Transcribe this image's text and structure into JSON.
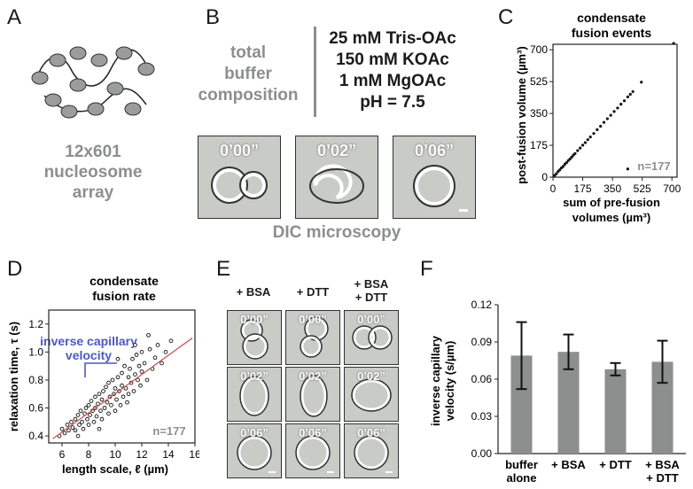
{
  "panels": {
    "A": {
      "letter": "A",
      "label_lines": [
        "12x601",
        "nucleosome",
        "array"
      ]
    },
    "B": {
      "letter": "B",
      "left_label_lines": [
        "total",
        "buffer",
        "composition"
      ],
      "buffer_lines": [
        "25 mM Tris-OAc",
        "150 mM KOAc",
        "1 mM MgOAc",
        "pH = 7.5"
      ],
      "timestamps": [
        "0’00”",
        "0’02”",
        "0’06”"
      ],
      "caption": "DIC microscopy"
    },
    "C": {
      "letter": "C",
      "title_lines": [
        "condensate",
        "fusion events"
      ],
      "ylabel": "post-fusion volume (µm³)",
      "xlabel_lines": [
        "sum of pre-fusion",
        "volumes (µm³)"
      ],
      "n_label": "n=177"
    },
    "D": {
      "letter": "D",
      "title_lines": [
        "condensate",
        "fusion rate"
      ],
      "annotation_lines": [
        "inverse capillary",
        "velocity"
      ],
      "ylabel": "relaxation time, τ (s)",
      "xlabel": "length scale, ℓ (µm)",
      "n_label": "n=177"
    },
    "E": {
      "letter": "E",
      "column_headers": [
        "+ BSA",
        "+ DTT",
        "+ BSA\n+ DTT"
      ],
      "column_header_lines": [
        [
          "+ BSA"
        ],
        [
          "+ DTT"
        ],
        [
          "+ BSA",
          "+ DTT"
        ]
      ],
      "timestamps": [
        "0’00”",
        "0’02”",
        "0’06”"
      ]
    },
    "F": {
      "letter": "F",
      "ylabel_lines": [
        "inverse capillary",
        "velocity (s/µm)"
      ],
      "category_lines": [
        [
          "buffer",
          "alone"
        ],
        [
          "+ BSA"
        ],
        [
          "+ DTT"
        ],
        [
          "+ BSA",
          "+ DTT"
        ]
      ]
    }
  },
  "chart_data": [
    {
      "panel": "C",
      "type": "scatter",
      "title": "condensate fusion events",
      "xlabel": "sum of pre-fusion volumes (µm³)",
      "ylabel": "post-fusion volume (µm³)",
      "xlim": [
        0,
        730
      ],
      "ylim": [
        0,
        730
      ],
      "xticks": [
        0,
        175,
        350,
        525,
        700
      ],
      "yticks": [
        0,
        175,
        350,
        525,
        700
      ],
      "points": [
        [
          10,
          10
        ],
        [
          20,
          19
        ],
        [
          30,
          31
        ],
        [
          40,
          40
        ],
        [
          50,
          51
        ],
        [
          60,
          59
        ],
        [
          70,
          71
        ],
        [
          80,
          80
        ],
        [
          90,
          91
        ],
        [
          100,
          100
        ],
        [
          110,
          110
        ],
        [
          120,
          121
        ],
        [
          130,
          130
        ],
        [
          145,
          146
        ],
        [
          160,
          160
        ],
        [
          175,
          176
        ],
        [
          190,
          190
        ],
        [
          205,
          206
        ],
        [
          220,
          221
        ],
        [
          240,
          240
        ],
        [
          260,
          261
        ],
        [
          280,
          280
        ],
        [
          300,
          301
        ],
        [
          320,
          321
        ],
        [
          340,
          340
        ],
        [
          360,
          361
        ],
        [
          380,
          380
        ],
        [
          400,
          401
        ],
        [
          420,
          420
        ],
        [
          440,
          441
        ],
        [
          455,
          455
        ],
        [
          470,
          470
        ],
        [
          520,
          522
        ],
        [
          440,
          45
        ],
        [
          710,
          735
        ]
      ],
      "annotation": "n=177"
    },
    {
      "panel": "D",
      "type": "scatter",
      "title": "condensate fusion rate",
      "xlabel": "length scale, ℓ (µm)",
      "ylabel": "relaxation time, τ (s)",
      "xlim": [
        5,
        16
      ],
      "ylim": [
        0.35,
        1.3
      ],
      "xticks": [
        6,
        8,
        10,
        12,
        14,
        16
      ],
      "yticks": [
        0.4,
        0.6,
        0.8,
        1.0,
        1.2
      ],
      "fit_line": {
        "x": [
          5.3,
          15.8
        ],
        "y": [
          0.38,
          1.1
        ]
      },
      "points": [
        [
          5.8,
          0.4
        ],
        [
          6.0,
          0.45
        ],
        [
          6.2,
          0.42
        ],
        [
          6.4,
          0.48
        ],
        [
          6.5,
          0.44
        ],
        [
          6.7,
          0.5
        ],
        [
          6.8,
          0.46
        ],
        [
          7.0,
          0.52
        ],
        [
          7.0,
          0.44
        ],
        [
          7.2,
          0.55
        ],
        [
          7.3,
          0.48
        ],
        [
          7.4,
          0.58
        ],
        [
          7.5,
          0.5
        ],
        [
          7.6,
          0.45
        ],
        [
          7.7,
          0.56
        ],
        [
          7.8,
          0.6
        ],
        [
          7.9,
          0.52
        ],
        [
          8.0,
          0.62
        ],
        [
          8.0,
          0.48
        ],
        [
          8.1,
          0.55
        ],
        [
          8.2,
          0.65
        ],
        [
          8.3,
          0.58
        ],
        [
          8.4,
          0.5
        ],
        [
          8.5,
          0.68
        ],
        [
          8.5,
          0.6
        ],
        [
          8.6,
          0.54
        ],
        [
          8.7,
          0.63
        ],
        [
          8.8,
          0.7
        ],
        [
          8.9,
          0.58
        ],
        [
          9.0,
          0.66
        ],
        [
          9.0,
          0.52
        ],
        [
          9.1,
          0.72
        ],
        [
          9.2,
          0.6
        ],
        [
          9.3,
          0.75
        ],
        [
          9.4,
          0.64
        ],
        [
          9.5,
          0.56
        ],
        [
          9.5,
          0.78
        ],
        [
          9.6,
          0.68
        ],
        [
          9.7,
          0.62
        ],
        [
          9.8,
          0.8
        ],
        [
          9.9,
          0.7
        ],
        [
          10.0,
          0.58
        ],
        [
          10.0,
          0.74
        ],
        [
          10.1,
          0.66
        ],
        [
          10.2,
          0.82
        ],
        [
          10.3,
          0.72
        ],
        [
          10.4,
          0.62
        ],
        [
          10.5,
          0.85
        ],
        [
          10.5,
          0.76
        ],
        [
          10.6,
          0.68
        ],
        [
          10.7,
          0.9
        ],
        [
          10.8,
          0.74
        ],
        [
          10.9,
          0.64
        ],
        [
          11.0,
          0.82
        ],
        [
          11.0,
          0.7
        ],
        [
          11.1,
          0.88
        ],
        [
          11.2,
          0.78
        ],
        [
          11.3,
          0.95
        ],
        [
          11.4,
          0.72
        ],
        [
          11.5,
          0.84
        ],
        [
          11.6,
          0.98
        ],
        [
          11.7,
          0.8
        ],
        [
          11.8,
          0.9
        ],
        [
          11.9,
          0.76
        ],
        [
          12.0,
          1.0
        ],
        [
          12.0,
          0.86
        ],
        [
          12.2,
          0.92
        ],
        [
          12.4,
          0.8
        ],
        [
          12.6,
          1.02
        ],
        [
          12.8,
          0.88
        ],
        [
          13.0,
          0.96
        ],
        [
          13.2,
          1.05
        ],
        [
          13.5,
          0.92
        ],
        [
          13.8,
          1.0
        ],
        [
          14.2,
          1.08
        ],
        [
          7.2,
          0.4
        ],
        [
          8.8,
          0.45
        ],
        [
          10.2,
          0.95
        ],
        [
          11.5,
          1.05
        ],
        [
          12.5,
          1.12
        ]
      ],
      "annotation": "n=177"
    },
    {
      "panel": "F",
      "type": "bar",
      "categories": [
        "buffer alone",
        "+ BSA",
        "+ DTT",
        "+ BSA + DTT"
      ],
      "values": [
        0.079,
        0.082,
        0.068,
        0.074
      ],
      "errors": [
        0.027,
        0.014,
        0.005,
        0.017
      ],
      "ylabel": "inverse capillary velocity (s/µm)",
      "ylim": [
        0,
        0.12
      ],
      "yticks": [
        "0.00",
        "0.03",
        "0.06",
        "0.09",
        "0.12"
      ],
      "bar_color": "#8d8f8e"
    }
  ]
}
